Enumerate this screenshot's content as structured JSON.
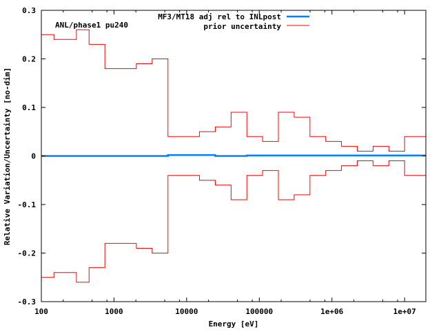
{
  "chart_data": {
    "type": "line",
    "title": "",
    "annotation": "ANL/phase1 pu240",
    "xlabel": "Energy [eV]",
    "ylabel": "Relative Variation/Uncertainty [no-dim]",
    "xscale": "log",
    "xlim": [
      100,
      19600000
    ],
    "ylim": [
      -0.3,
      0.3
    ],
    "grid": false,
    "legend_position": "top-right",
    "x_tick_labels": [
      "100",
      "1000",
      "10000",
      "100000",
      "1e+06",
      "1e+07"
    ],
    "x_tick_values": [
      100,
      1000,
      10000,
      100000,
      1000000,
      10000000
    ],
    "y_tick_labels": [
      "-0.3",
      "-0.2",
      "-0.1",
      "0",
      "0.1",
      "0.2",
      "0.3"
    ],
    "y_tick_values": [
      -0.3,
      -0.2,
      -0.1,
      0,
      0.1,
      0.2,
      0.3
    ],
    "bin_edges": [
      100,
      149,
      304,
      454,
      749,
      2030,
      3350,
      5530,
      15000,
      24800,
      40900,
      67400,
      111000,
      183000,
      302000,
      498000,
      821000,
      1350000,
      2230000,
      3680000,
      6070000,
      10000000,
      19600000
    ],
    "series": [
      {
        "name": "MF3/MT18 adj rel to INLpost",
        "color": "#0080ff",
        "style": "step",
        "values": [
          0,
          0,
          0,
          0,
          0,
          0,
          0,
          0.002,
          0.002,
          0,
          0,
          0.001,
          0.001,
          0.001,
          0.001,
          0.001,
          0.001,
          0.001,
          0.001,
          0.001,
          0.001,
          0.001
        ]
      },
      {
        "name": "prior uncertainty",
        "color": "#ff0000",
        "style": "step",
        "mirrored": true,
        "values": [
          0.25,
          0.24,
          0.26,
          0.23,
          0.18,
          0.19,
          0.2,
          0.04,
          0.05,
          0.06,
          0.09,
          0.04,
          0.03,
          0.09,
          0.08,
          0.04,
          0.03,
          0.02,
          0.01,
          0.02,
          0.01,
          0.04
        ]
      }
    ]
  }
}
